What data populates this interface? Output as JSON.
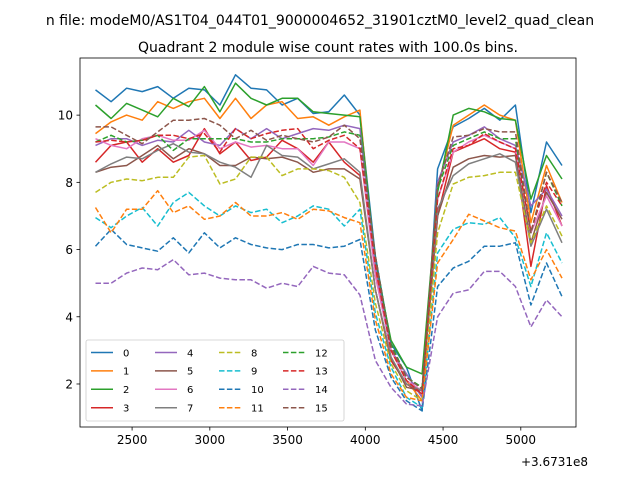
{
  "suptitle": "n file: modeM0/AS1T04_044T01_9000004652_31901cztM0_level2_quad_clean",
  "chart_data": {
    "type": "line",
    "title": "Quadrant 2 module wise count rates with 100.0s bins.",
    "xlabel": "",
    "ylabel": "",
    "x_offset_label": "+3.6731e8",
    "xlim": [
      2165,
      5355
    ],
    "ylim": [
      0.72,
      11.7
    ],
    "xticks": [
      2500,
      3000,
      3500,
      4000,
      4500,
      5000
    ],
    "yticks": [
      2,
      4,
      6,
      8,
      10
    ],
    "grid": false,
    "legend": {
      "placement": "lower-left",
      "columns": 4
    },
    "x": [
      2265,
      2365,
      2465,
      2565,
      2665,
      2765,
      2865,
      2965,
      3065,
      3165,
      3265,
      3365,
      3465,
      3565,
      3665,
      3765,
      3865,
      3965,
      4065,
      4165,
      4265,
      4365,
      4465,
      4565,
      4665,
      4765,
      4865,
      4965,
      5065,
      5165,
      5265
    ],
    "series": [
      {
        "name": "0",
        "color": "#1f77b4",
        "dash": "solid",
        "values": [
          10.75,
          10.4,
          10.8,
          10.7,
          10.85,
          10.5,
          10.8,
          10.75,
          10.3,
          11.2,
          10.8,
          10.75,
          10.3,
          10.5,
          10.05,
          10.1,
          10.6,
          10.0,
          5.8,
          3.2,
          2.5,
          1.2,
          8.4,
          9.65,
          9.9,
          10.2,
          9.85,
          10.3,
          7.1,
          9.2,
          8.5
        ]
      },
      {
        "name": "1",
        "color": "#ff7f0e",
        "dash": "solid",
        "values": [
          9.45,
          9.8,
          10.0,
          9.85,
          10.4,
          10.2,
          10.4,
          10.5,
          9.9,
          10.5,
          9.9,
          10.3,
          10.4,
          9.9,
          9.95,
          9.7,
          9.95,
          10.15,
          5.3,
          3.0,
          2.1,
          1.5,
          7.8,
          9.7,
          10.0,
          10.3,
          10.0,
          9.85,
          6.8,
          8.5,
          7.4
        ]
      },
      {
        "name": "2",
        "color": "#2ca02c",
        "dash": "solid",
        "values": [
          10.3,
          9.9,
          10.35,
          10.15,
          9.95,
          10.5,
          10.25,
          10.85,
          10.1,
          10.95,
          10.5,
          10.3,
          10.5,
          10.5,
          10.1,
          10.05,
          10.0,
          9.95,
          5.6,
          3.3,
          2.5,
          2.3,
          7.7,
          10.0,
          10.2,
          10.1,
          9.9,
          9.85,
          7.5,
          8.8,
          8.1
        ]
      },
      {
        "name": "3",
        "color": "#d62728",
        "dash": "solid",
        "values": [
          8.6,
          9.1,
          9.2,
          8.6,
          9.0,
          8.6,
          8.8,
          9.6,
          8.85,
          9.2,
          8.65,
          8.75,
          9.25,
          9.0,
          8.6,
          9.2,
          8.6,
          8.2,
          4.8,
          2.7,
          2.0,
          1.7,
          7.0,
          8.9,
          9.1,
          9.3,
          9.0,
          8.9,
          5.5,
          7.9,
          6.7
        ]
      },
      {
        "name": "4",
        "color": "#9467bd",
        "dash": "solid",
        "values": [
          9.1,
          9.3,
          9.3,
          9.1,
          9.25,
          9.2,
          9.55,
          9.2,
          9.1,
          9.6,
          9.3,
          9.6,
          9.3,
          9.45,
          9.6,
          9.55,
          9.7,
          9.6,
          5.5,
          3.0,
          2.3,
          1.6,
          8.0,
          9.2,
          9.4,
          9.65,
          9.3,
          9.1,
          7.3,
          7.8,
          7.0
        ]
      },
      {
        "name": "5",
        "color": "#8c564b",
        "dash": "solid",
        "values": [
          8.3,
          8.45,
          8.5,
          8.8,
          9.1,
          8.7,
          9.0,
          8.85,
          8.5,
          8.5,
          8.75,
          8.7,
          8.75,
          8.6,
          8.3,
          8.4,
          8.4,
          8.1,
          4.8,
          2.8,
          1.9,
          1.8,
          7.0,
          8.45,
          8.7,
          8.8,
          8.75,
          8.8,
          6.2,
          7.7,
          6.9
        ]
      },
      {
        "name": "6",
        "color": "#e377c2",
        "dash": "solid",
        "values": [
          9.3,
          9.1,
          9.0,
          9.3,
          9.4,
          9.25,
          9.25,
          9.55,
          9.0,
          9.2,
          9.05,
          9.1,
          9.0,
          9.0,
          8.5,
          9.2,
          9.2,
          9.0,
          5.2,
          3.0,
          2.1,
          1.8,
          7.5,
          8.9,
          9.2,
          9.4,
          9.2,
          9.0,
          6.5,
          7.6,
          6.7
        ]
      },
      {
        "name": "7",
        "color": "#7f7f7f",
        "dash": "solid",
        "values": [
          8.3,
          8.55,
          8.75,
          8.7,
          8.95,
          9.15,
          8.9,
          8.85,
          8.6,
          8.45,
          8.15,
          9.1,
          8.8,
          8.75,
          8.4,
          8.55,
          8.7,
          8.3,
          4.8,
          2.8,
          2.0,
          1.8,
          7.2,
          8.2,
          8.55,
          8.7,
          8.85,
          8.6,
          6.1,
          7.2,
          6.2
        ]
      },
      {
        "name": "8",
        "color": "#bcbd22",
        "dash": "dash",
        "values": [
          7.7,
          8.0,
          8.1,
          8.05,
          8.15,
          8.15,
          8.75,
          8.8,
          7.95,
          8.1,
          8.75,
          8.75,
          8.2,
          8.4,
          8.4,
          8.35,
          8.15,
          7.4,
          4.4,
          2.6,
          1.8,
          1.5,
          6.5,
          7.95,
          8.15,
          8.2,
          8.3,
          8.3,
          6.2,
          7.3,
          6.4
        ]
      },
      {
        "name": "9",
        "color": "#17becf",
        "dash": "dash",
        "values": [
          6.95,
          6.65,
          7.0,
          7.25,
          6.7,
          7.4,
          7.7,
          7.3,
          7.0,
          7.3,
          7.1,
          7.2,
          6.8,
          7.0,
          7.3,
          7.2,
          6.7,
          7.2,
          4.1,
          2.5,
          1.6,
          1.3,
          5.9,
          6.6,
          6.8,
          6.75,
          6.95,
          6.35,
          4.9,
          6.5,
          5.6
        ]
      },
      {
        "name": "10",
        "color": "#1f77b4",
        "dash": "dash",
        "values": [
          6.1,
          6.6,
          6.15,
          6.05,
          5.95,
          6.35,
          5.9,
          6.5,
          6.05,
          6.35,
          6.15,
          6.05,
          6.0,
          6.15,
          6.15,
          6.05,
          6.1,
          6.3,
          3.6,
          2.2,
          1.5,
          1.2,
          4.9,
          5.45,
          5.65,
          6.1,
          6.1,
          6.2,
          4.35,
          5.6,
          4.6
        ]
      },
      {
        "name": "11",
        "color": "#ff7f0e",
        "dash": "dash",
        "values": [
          7.25,
          6.5,
          7.2,
          7.2,
          7.75,
          7.1,
          7.3,
          6.9,
          7.0,
          7.4,
          7.0,
          7.0,
          7.1,
          6.9,
          7.2,
          7.15,
          6.95,
          6.8,
          3.9,
          2.3,
          1.6,
          1.5,
          5.6,
          6.3,
          7.05,
          6.85,
          6.65,
          6.55,
          5.1,
          6.0,
          5.15
        ]
      },
      {
        "name": "12",
        "color": "#2ca02c",
        "dash": "dash",
        "values": [
          9.2,
          9.4,
          9.2,
          9.25,
          9.4,
          8.95,
          9.3,
          9.3,
          9.3,
          9.3,
          9.2,
          9.2,
          9.3,
          9.3,
          9.3,
          9.35,
          9.5,
          9.4,
          5.8,
          3.2,
          2.2,
          1.9,
          7.8,
          9.1,
          9.3,
          9.5,
          9.3,
          9.3,
          6.5,
          8.3,
          7.3
        ]
      },
      {
        "name": "13",
        "color": "#d62728",
        "dash": "dash",
        "values": [
          9.2,
          9.25,
          9.2,
          9.25,
          9.4,
          9.4,
          9.3,
          9.45,
          8.9,
          9.6,
          9.3,
          9.45,
          9.55,
          9.6,
          9.0,
          9.25,
          9.4,
          9.0,
          5.5,
          3.0,
          2.1,
          1.7,
          7.5,
          9.0,
          9.1,
          9.45,
          9.2,
          9.0,
          6.55,
          8.0,
          7.3
        ]
      },
      {
        "name": "14",
        "color": "#9467bd",
        "dash": "dash",
        "values": [
          5.0,
          5.0,
          5.3,
          5.45,
          5.4,
          5.7,
          5.25,
          5.3,
          5.15,
          5.1,
          5.1,
          4.85,
          5.0,
          4.9,
          5.5,
          5.3,
          5.25,
          4.65,
          2.7,
          1.9,
          1.4,
          1.35,
          4.0,
          4.7,
          4.8,
          5.35,
          5.35,
          4.9,
          3.7,
          4.5,
          4.0
        ]
      },
      {
        "name": "15",
        "color": "#8c564b",
        "dash": "dash",
        "values": [
          9.65,
          9.65,
          9.4,
          9.15,
          9.5,
          9.85,
          9.85,
          9.9,
          9.7,
          9.3,
          9.55,
          9.25,
          9.4,
          9.3,
          9.2,
          9.35,
          9.7,
          9.3,
          5.8,
          3.1,
          2.2,
          1.85,
          7.9,
          9.35,
          9.4,
          9.6,
          9.5,
          9.5,
          6.5,
          8.3,
          7.4
        ]
      }
    ]
  }
}
